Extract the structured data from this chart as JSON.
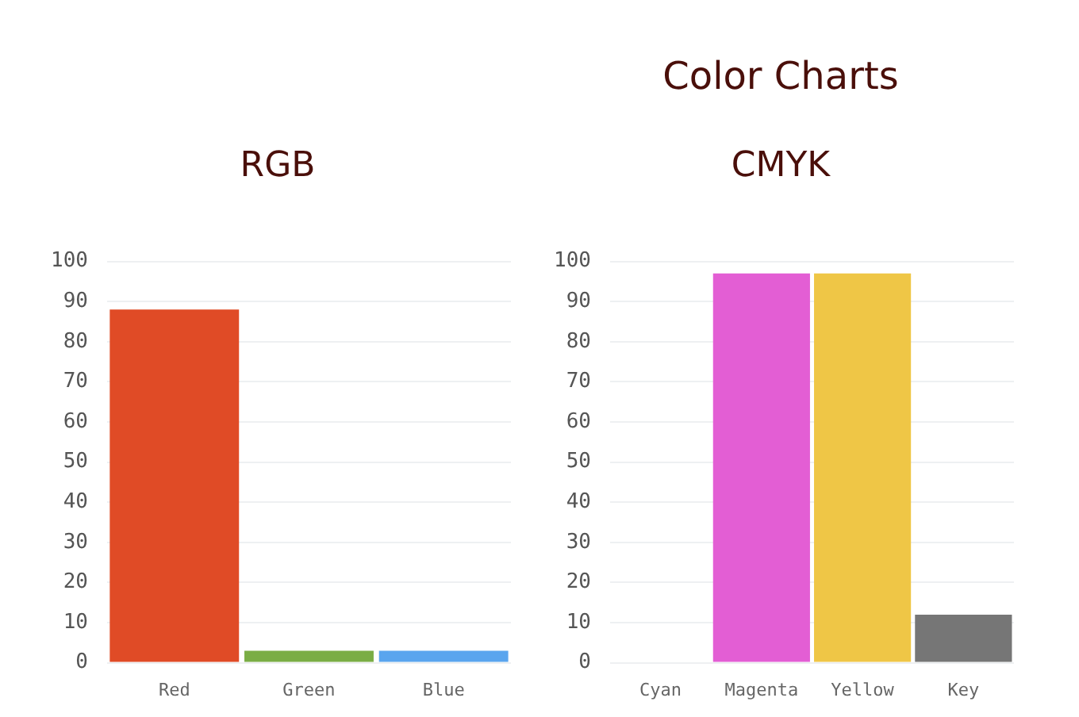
{
  "chart_data": [
    {
      "type": "bar",
      "title": "RGB",
      "categories": [
        "Red",
        "Green",
        "Blue"
      ],
      "values": [
        88,
        3,
        3
      ],
      "colors": [
        "#e04b26",
        "#7aad45",
        "#5aa5ee"
      ],
      "ylim": [
        0,
        100
      ],
      "yticks": [
        0,
        10,
        20,
        30,
        40,
        50,
        60,
        70,
        80,
        90,
        100
      ],
      "grid": "y",
      "legend": false
    },
    {
      "type": "bar",
      "title": "CMYK",
      "annotations": [
        "Color Charts"
      ],
      "categories": [
        "Cyan",
        "Magenta",
        "Yellow",
        "Key"
      ],
      "values": [
        0,
        97,
        97,
        12
      ],
      "colors": [
        "#33c4e0",
        "#e35ed4",
        "#efc646",
        "#767676"
      ],
      "ylim": [
        0,
        100
      ],
      "yticks": [
        0,
        10,
        20,
        30,
        40,
        50,
        60,
        70,
        80,
        90,
        100
      ],
      "grid": "y",
      "legend": false
    }
  ]
}
